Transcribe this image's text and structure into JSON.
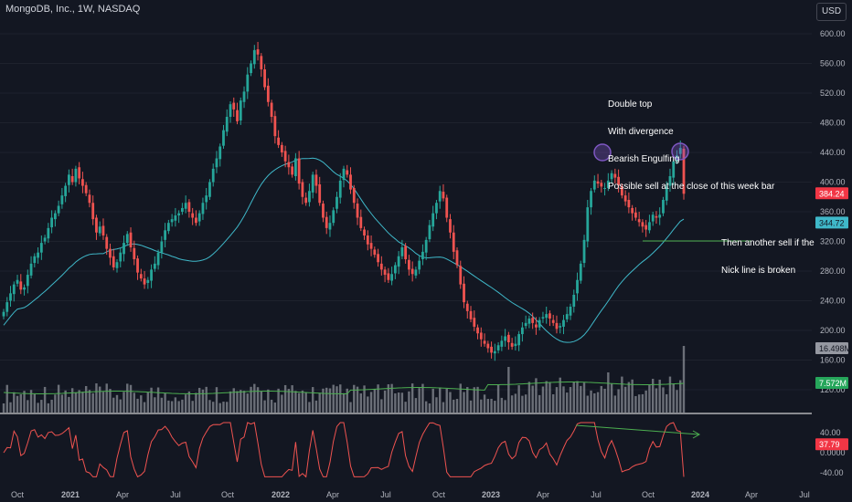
{
  "header": {
    "title": "MongoDB, Inc., 1W, NASDAQ",
    "currency": "USD"
  },
  "annotations": {
    "top_note": [
      "Double top",
      "With divergence",
      "Bearish Engulfing",
      "Possible sell at the close of this week bar"
    ],
    "side_note": [
      "Then another sell if the",
      "Nick line is broken"
    ]
  },
  "colors": {
    "up": "#26a69a",
    "down": "#ef5350",
    "ma": "#3fb8c9",
    "volume": "#8a8d96",
    "volume_ma": "#4caf50",
    "rsi": "#ef5350",
    "divergence": "#4caf50",
    "circle": "#7e57c2"
  },
  "chart_data": [
    {
      "type": "candlestick",
      "title": "MongoDB, Inc., 1W, NASDAQ",
      "ylim": [
        100,
        620
      ],
      "y_ticks": [
        "600.00",
        "560.00",
        "520.00",
        "480.00",
        "440.00",
        "400.00",
        "360.00",
        "320.00",
        "280.00",
        "240.00",
        "200.00",
        "160.00",
        "120.00"
      ],
      "x_ticks": [
        "Oct",
        "2021",
        "Apr",
        "Jul",
        "Oct",
        "2022",
        "Apr",
        "Jul",
        "Oct",
        "2023",
        "Apr",
        "Jul",
        "Oct",
        "2024",
        "Apr",
        "Jul"
      ],
      "series": [
        {
          "name": "Price",
          "close_path": [
            225,
            238,
            250,
            262,
            268,
            255,
            258,
            275,
            290,
            300,
            305,
            318,
            325,
            338,
            352,
            358,
            368,
            382,
            395,
            410,
            400,
            418,
            405,
            395,
            385,
            372,
            350,
            332,
            340,
            328,
            310,
            298,
            285,
            292,
            305,
            318,
            330,
            312,
            296,
            278,
            270,
            262,
            268,
            282,
            290,
            305,
            320,
            335,
            345,
            350,
            355,
            358,
            365,
            372,
            360,
            352,
            345,
            358,
            372,
            382,
            400,
            418,
            432,
            448,
            470,
            488,
            505,
            498,
            482,
            510,
            522,
            545,
            560,
            578,
            572,
            552,
            528,
            508,
            488,
            462,
            450,
            440,
            428,
            420,
            410,
            432,
            398,
            380,
            372,
            388,
            410,
            395,
            372,
            352,
            338,
            345,
            362,
            380,
            402,
            418,
            410,
            390,
            372,
            352,
            338,
            328,
            316,
            310,
            302,
            292,
            282,
            275,
            268,
            276,
            288,
            300,
            312,
            296,
            282,
            276,
            282,
            294,
            306,
            322,
            342,
            358,
            372,
            388,
            378,
            352,
            332,
            306,
            288,
            262,
            238,
            226,
            215,
            205,
            196,
            188,
            182,
            176,
            170,
            172,
            180,
            186,
            192,
            184,
            178,
            182,
            195,
            204,
            210,
            216,
            210,
            204,
            214,
            218,
            222,
            216,
            210,
            202,
            206,
            214,
            222,
            232,
            248,
            268,
            290,
            322,
            366,
            388,
            402,
            398,
            394,
            392,
            402,
            412,
            406,
            396,
            382,
            374,
            366,
            358,
            352,
            346,
            340,
            336,
            346,
            356,
            352,
            356,
            376,
            394,
            408,
            428,
            436,
            446,
            384.24
          ]
        },
        {
          "name": "MA",
          "value": 344.72
        },
        {
          "name": "Volume",
          "last": "16.498M",
          "ma_last": "7.572M"
        },
        {
          "name": "RSI",
          "value": 37.79
        }
      ],
      "last_price": "384.24",
      "ma_value": "344.72"
    },
    {
      "type": "line",
      "y_ticks": [
        "40.00",
        "0.0000",
        "-40.00"
      ],
      "last_value": "37.79"
    }
  ]
}
